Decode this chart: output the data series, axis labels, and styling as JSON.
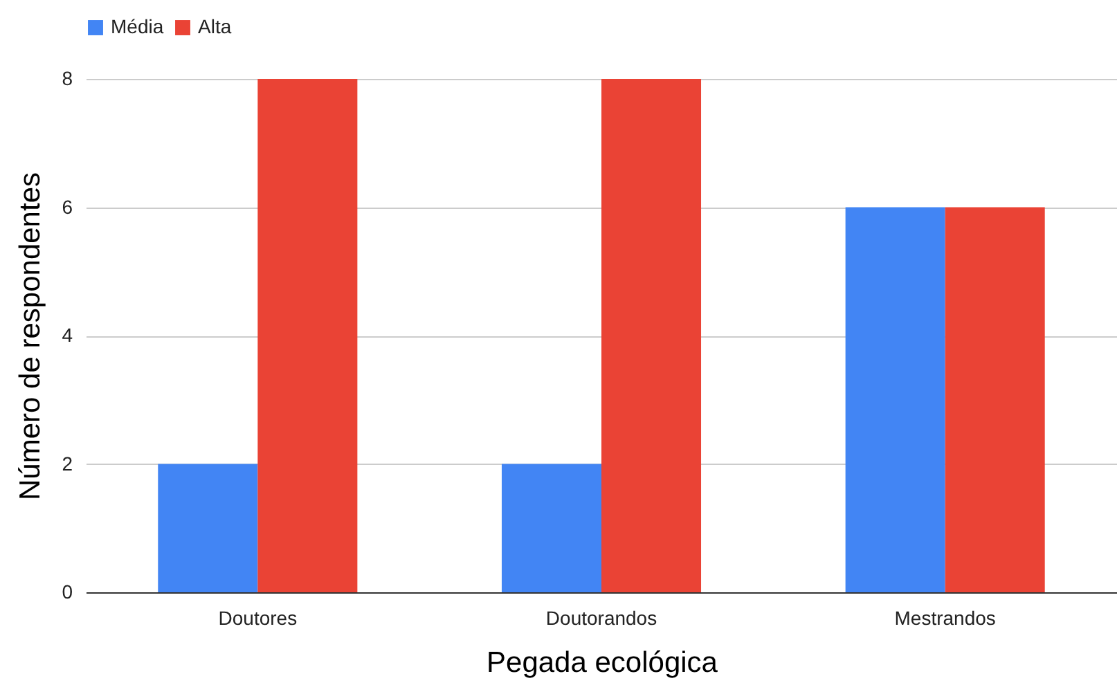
{
  "chart_data": {
    "type": "bar",
    "xlabel": "Pegada ecológica",
    "ylabel": "Número de respondentes",
    "categories": [
      "Doutores",
      "Doutorandos",
      "Mestrandos"
    ],
    "series": [
      {
        "name": "Média",
        "color": "#4285f4",
        "values": [
          2,
          2,
          6
        ]
      },
      {
        "name": "Alta",
        "color": "#ea4335",
        "values": [
          8,
          8,
          6
        ]
      }
    ],
    "ylim": [
      0,
      8
    ],
    "yticks": [
      0,
      2,
      4,
      6,
      8
    ],
    "grid": "y",
    "legend": "top"
  }
}
